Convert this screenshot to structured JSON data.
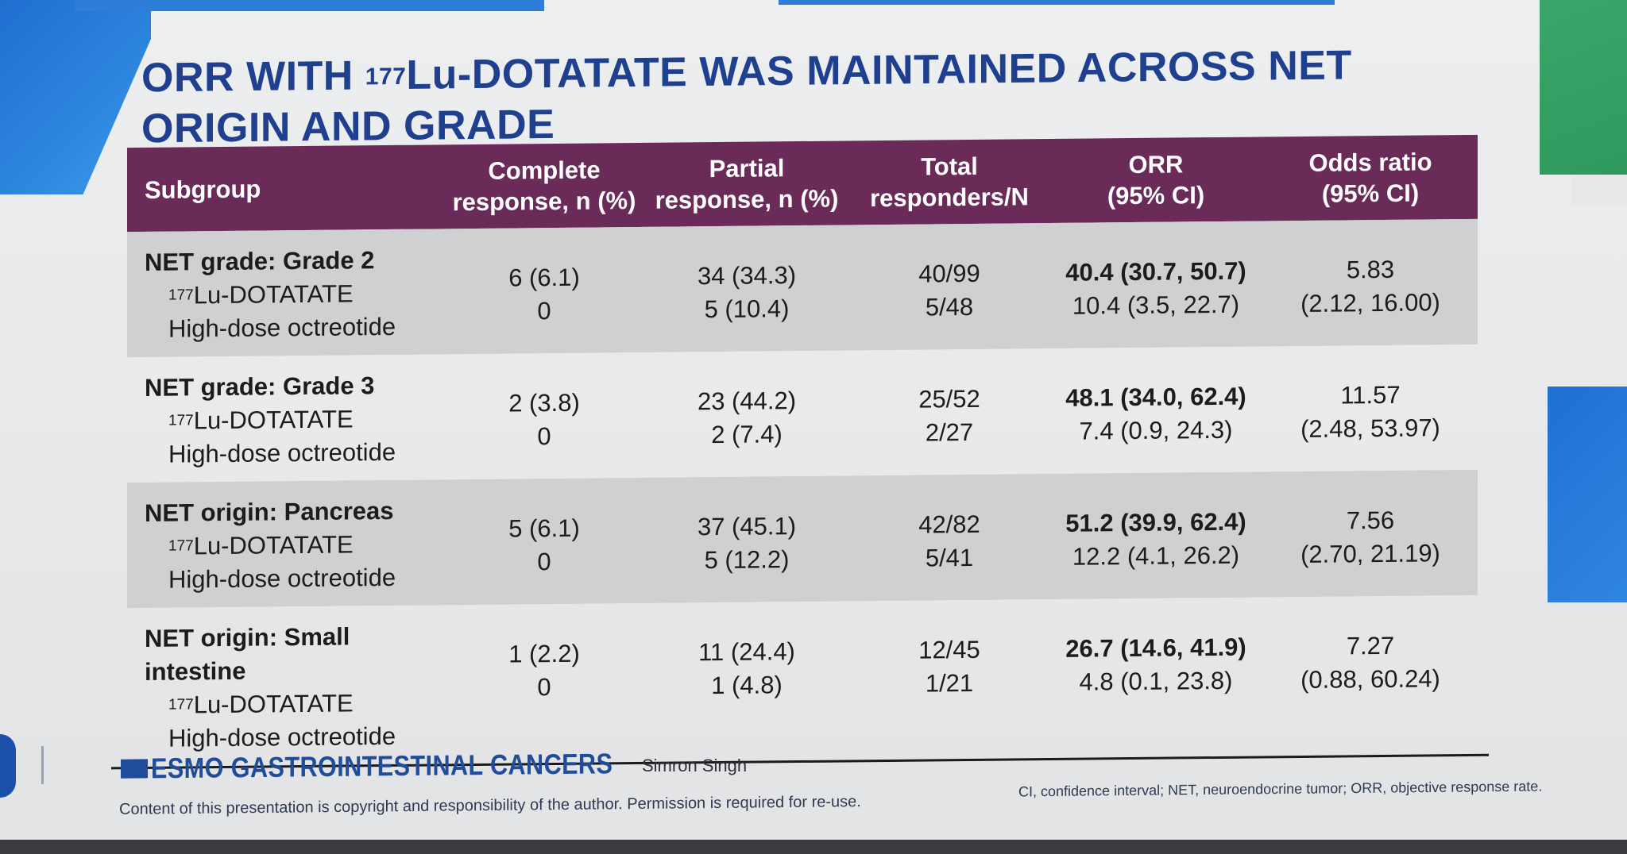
{
  "title": {
    "part1": "ORR WITH ",
    "sup": "177",
    "part2": "Lu-DOTATATE WAS MAINTAINED ACROSS NET",
    "line2": "ORIGIN AND GRADE"
  },
  "table": {
    "headers": {
      "subgroup": "Subgroup",
      "complete_line1": "Complete",
      "complete_line2": "response, n (%)",
      "partial_line1": "Partial",
      "partial_line2": "response, n (%)",
      "total_line1": "Total",
      "total_line2": "responders/N",
      "orr_line1": "ORR",
      "orr_line2": "(95% CI)",
      "odds_line1": "Odds ratio",
      "odds_line2": "(95% CI)"
    },
    "arm_sup": "177",
    "arm1": "Lu-DOTATATE",
    "arm2": "High-dose octreotide",
    "groups": [
      {
        "title": "NET grade: Grade 2",
        "complete": [
          "6 (6.1)",
          "0"
        ],
        "partial": [
          "34 (34.3)",
          "5 (10.4)"
        ],
        "total": [
          "40/99",
          "5/48"
        ],
        "orr": [
          "40.4 (30.7, 50.7)",
          "10.4 (3.5, 22.7)"
        ],
        "odds": [
          "5.83",
          "(2.12, 16.00)"
        ]
      },
      {
        "title": "NET grade: Grade 3",
        "complete": [
          "2 (3.8)",
          "0"
        ],
        "partial": [
          "23 (44.2)",
          "2 (7.4)"
        ],
        "total": [
          "25/52",
          "2/27"
        ],
        "orr": [
          "48.1 (34.0, 62.4)",
          "7.4 (0.9, 24.3)"
        ],
        "odds": [
          "11.57",
          "(2.48, 53.97)"
        ]
      },
      {
        "title": "NET origin: Pancreas",
        "complete": [
          "5 (6.1)",
          "0"
        ],
        "partial": [
          "37 (45.1)",
          "5 (12.2)"
        ],
        "total": [
          "42/82",
          "5/41"
        ],
        "orr": [
          "51.2 (39.9, 62.4)",
          "12.2 (4.1, 26.2)"
        ],
        "odds": [
          "7.56",
          "(2.70, 21.19)"
        ]
      },
      {
        "title": "NET origin: Small intestine",
        "complete": [
          "1 (2.2)",
          "0"
        ],
        "partial": [
          "11 (24.4)",
          "1 (4.8)"
        ],
        "total": [
          "12/45",
          "1/21"
        ],
        "orr": [
          "26.7 (14.6, 41.9)",
          "4.8 (0.1, 23.8)"
        ],
        "odds": [
          "7.27",
          "(0.88, 60.24)"
        ]
      }
    ]
  },
  "footer": {
    "logo_text": "ESMO GASTROINTESTINAL CANCERS",
    "author": "Simron Singh",
    "copyright": "Content of this presentation is copyright and responsibility of the author. Permission is required for re-use.",
    "abbreviations": "CI, confidence interval; NET, neuroendocrine tumor; ORR, objective response rate."
  },
  "colors": {
    "title": "#1f3f8f",
    "header_bg": "#6b2b59",
    "shade_row": "#cfd0d2",
    "logo": "#1f4d9b"
  }
}
